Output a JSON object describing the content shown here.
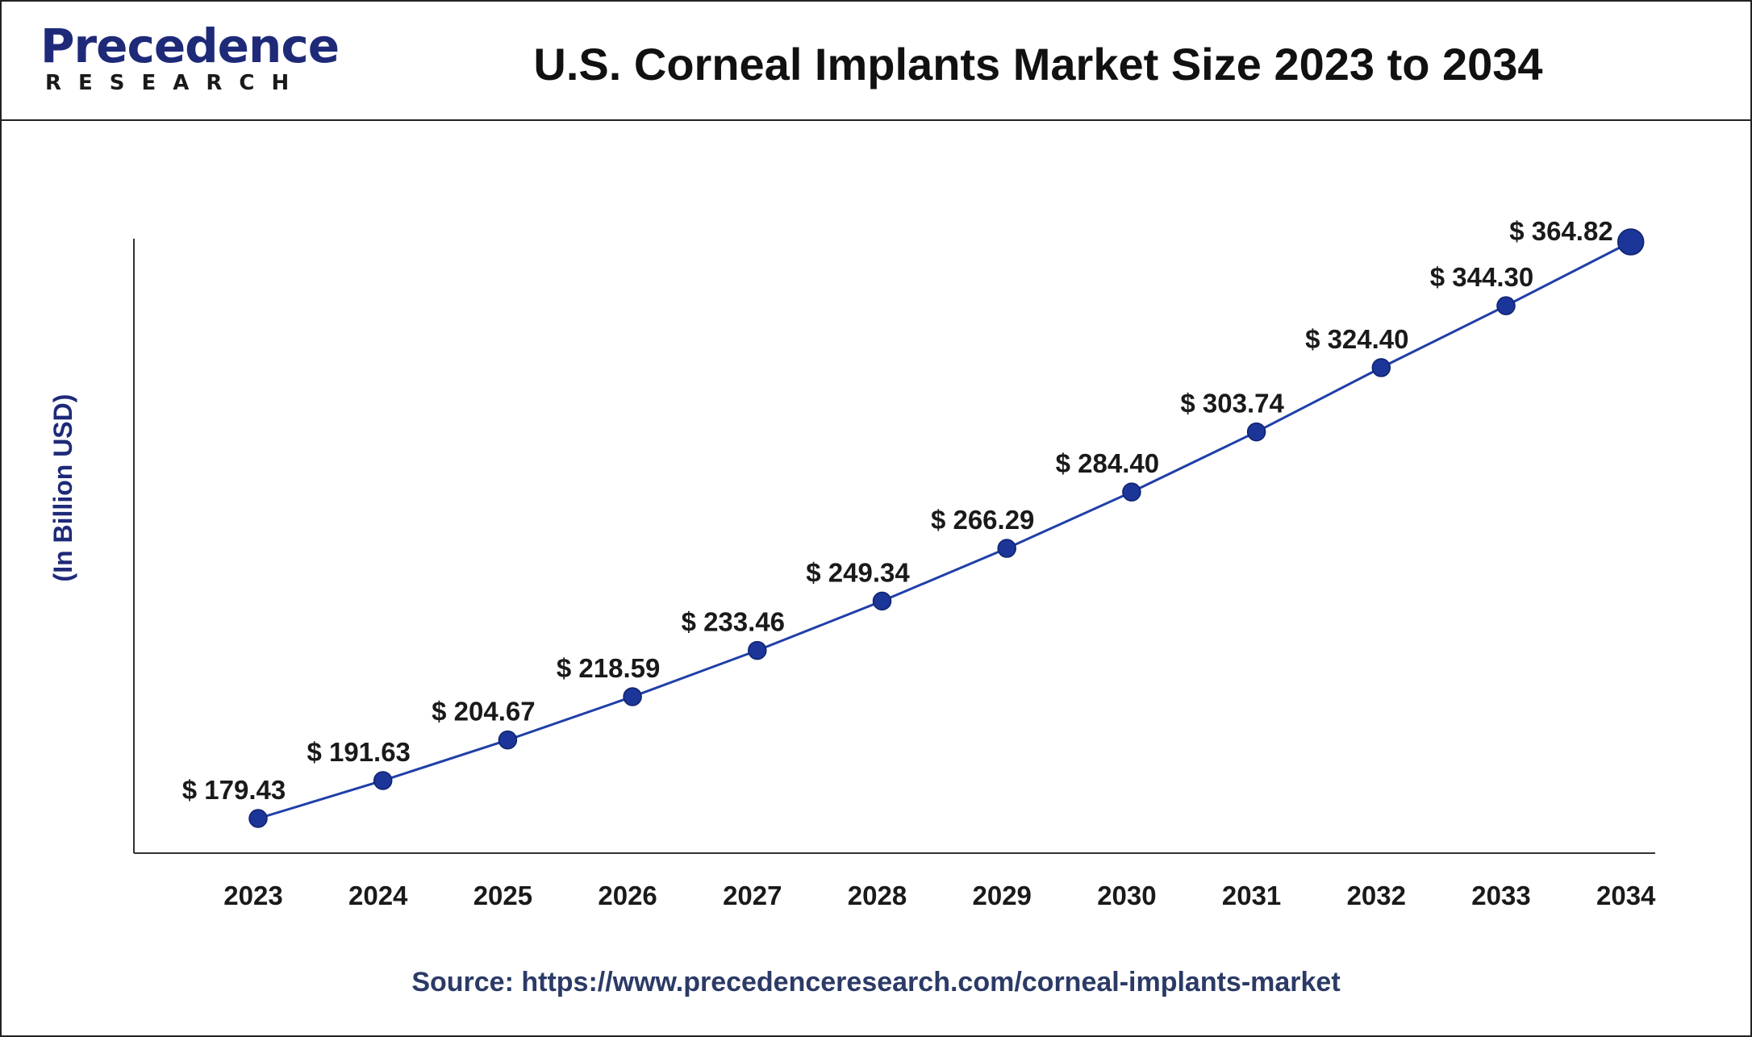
{
  "header": {
    "logo_main": "Precedence",
    "logo_sub": "RESEARCH",
    "title": "U.S. Corneal Implants Market Size 2023 to 2034"
  },
  "source_text": "Source: https://www.precedenceresearch.com/corneal-implants-market",
  "colors": {
    "line": "#1f3fa8",
    "marker": "#1b3598",
    "axis": "#333333",
    "title": "#111111",
    "ylabel": "#1e2a78",
    "source": "#2b3a66"
  },
  "chart_data": {
    "type": "line",
    "title": "U.S. Corneal Implants Market Size 2023 to 2034",
    "xlabel": "",
    "ylabel": "(In Billion USD)",
    "categories": [
      "2023",
      "2024",
      "2025",
      "2026",
      "2027",
      "2028",
      "2029",
      "2030",
      "2031",
      "2032",
      "2033",
      "2034"
    ],
    "values": [
      179.43,
      191.63,
      204.67,
      218.59,
      233.46,
      249.34,
      266.29,
      284.4,
      303.74,
      324.4,
      344.3,
      364.82
    ],
    "data_labels": [
      "$ 179.43",
      "$ 191.63",
      "$ 204.67",
      "$ 218.59",
      "$ 233.46",
      "$ 249.34",
      "$ 266.29",
      "$ 284.40",
      "$ 303.74",
      "$ 324.40",
      "$ 344.30",
      "$ 364.82"
    ],
    "ylim": [
      130,
      380
    ],
    "grid": false,
    "legend": "none"
  }
}
